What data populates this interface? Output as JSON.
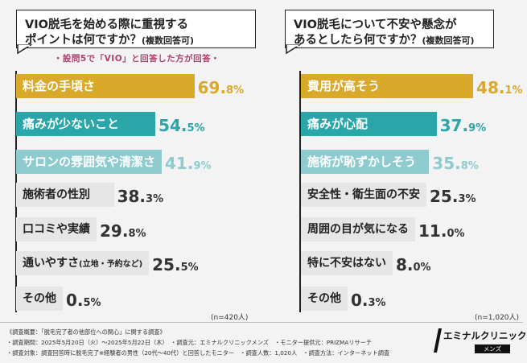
{
  "chart_data": [
    {
      "type": "bar",
      "orientation": "horizontal",
      "title": "VIO脱毛を始める際に重視するポイントは何ですか？(複数回答可)",
      "title_line1": "VIO脱毛を始める際に重視する",
      "title_line2": "ポイントは何ですか？",
      "title_suffix": "(複数回答可)",
      "note": "・設問5で「VIO」と回答した方が回答・",
      "n_label": "(n=420人)",
      "categories": [
        "料金の手頃さ",
        "痛みが少ないこと",
        "サロンの雰囲気や清潔さ",
        "施術者の性別",
        "口コミや実績",
        "通いやすさ",
        "その他"
      ],
      "category_suffix": [
        "",
        "",
        "",
        "",
        "",
        "(立地・予約など)",
        ""
      ],
      "values": [
        69.8,
        54.5,
        41.9,
        38.3,
        29.8,
        25.5,
        0.5
      ],
      "value_labels": [
        [
          "69.",
          "8%"
        ],
        [
          "54.",
          "5%"
        ],
        [
          "41.",
          "9%"
        ],
        [
          "38.",
          "3%"
        ],
        [
          "29.",
          "8%"
        ],
        [
          "25.",
          "5%"
        ],
        [
          "0.",
          "5%"
        ]
      ],
      "ylabel_unit": "%",
      "xlim": [
        0,
        100
      ]
    },
    {
      "type": "bar",
      "orientation": "horizontal",
      "title": "VIO脱毛について不安や懸念があるとしたら何ですか？(複数回答可)",
      "title_line1": "VIO脱毛について不安や懸念が",
      "title_line2": "あるとしたら何ですか？",
      "title_suffix": "(複数回答可)",
      "n_label": "(n=1,020人)",
      "categories": [
        "費用が高そう",
        "痛みが心配",
        "施術が恥ずかしそう",
        "安全性・衛生面の不安",
        "周囲の目が気になる",
        "特に不安はない",
        "その他"
      ],
      "category_suffix": [
        "",
        "",
        "",
        "",
        "",
        "",
        ""
      ],
      "values": [
        48.1,
        37.9,
        35.8,
        25.3,
        11.0,
        8.0,
        0.3
      ],
      "value_labels": [
        [
          "48.",
          "1%"
        ],
        [
          "37.",
          "9%"
        ],
        [
          "35.",
          "8%"
        ],
        [
          "25.",
          "3%"
        ],
        [
          "11.",
          "0%"
        ],
        [
          "8.",
          "0%"
        ],
        [
          "0.",
          "3%"
        ]
      ],
      "ylabel_unit": "%",
      "xlim": [
        0,
        100
      ]
    }
  ],
  "colors": {
    "rank1": "#d9a92a",
    "rank2": "#2aa5a8",
    "rank3": "#8ecbcf",
    "other": "#e6e6e6",
    "label_light": "#ffffff",
    "label_dark": "#222222"
  },
  "footer": {
    "line1": "《調査概要：「脱毛完了者の他部位への関心」に関する調査》",
    "line2": "・調査期間：2025年5月20日（火）〜2025年5月22日（木）　・調査元：エミナルクリニックメンズ　・モニター提供元：PRIZMAリサーチ",
    "line3": "・調査対象：調査回答時に脱毛完了※経験者の男性（20代〜40代）と回答したモニター　・調査人数：1,020人　・調査方法：インターネット調査"
  },
  "logo": {
    "name": "エミナルクリニック",
    "sub": "メンズ"
  }
}
